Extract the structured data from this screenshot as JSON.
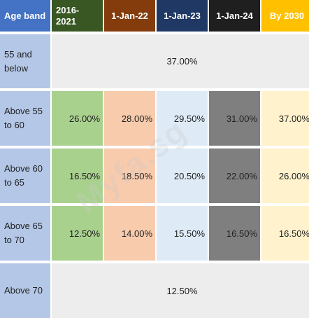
{
  "headers": {
    "age_band": "Age band",
    "col1": "2016-2021",
    "col2": "1-Jan-22",
    "col3": "1-Jan-23",
    "col4": "1-Jan-24",
    "col5": "By 2030"
  },
  "rows": [
    {
      "band": "55 and below",
      "merged_value": "37.00%"
    },
    {
      "band": "Above 55 to 60",
      "values": [
        "26.00%",
        "28.00%",
        "29.50%",
        "31.00%",
        "37.00%"
      ]
    },
    {
      "band": "Above 60 to 65",
      "values": [
        "16.50%",
        "18.50%",
        "20.50%",
        "22.00%",
        "26.00%"
      ]
    },
    {
      "band": "Above 65 to 70",
      "values": [
        "12.50%",
        "14.00%",
        "15.50%",
        "16.50%",
        "16.50%"
      ]
    },
    {
      "band": "Above 70",
      "merged_value": "12.50%"
    }
  ],
  "watermark": "Myfa.sg",
  "colors": {
    "header_age": "#4472c4",
    "header_2016": "#385723",
    "header_jan22": "#843c0c",
    "header_jan23": "#1f3864",
    "header_jan24": "#1f1f1f",
    "header_2030": "#ffc000",
    "band_cell": "#b4c7e7",
    "col1_cell": "#a9d18e",
    "col2_cell": "#f8cbad",
    "col3_cell": "#deebf7",
    "col4_cell": "#7f7f7f",
    "col5_cell": "#fff2cc",
    "merged_cell": "#ededed"
  }
}
